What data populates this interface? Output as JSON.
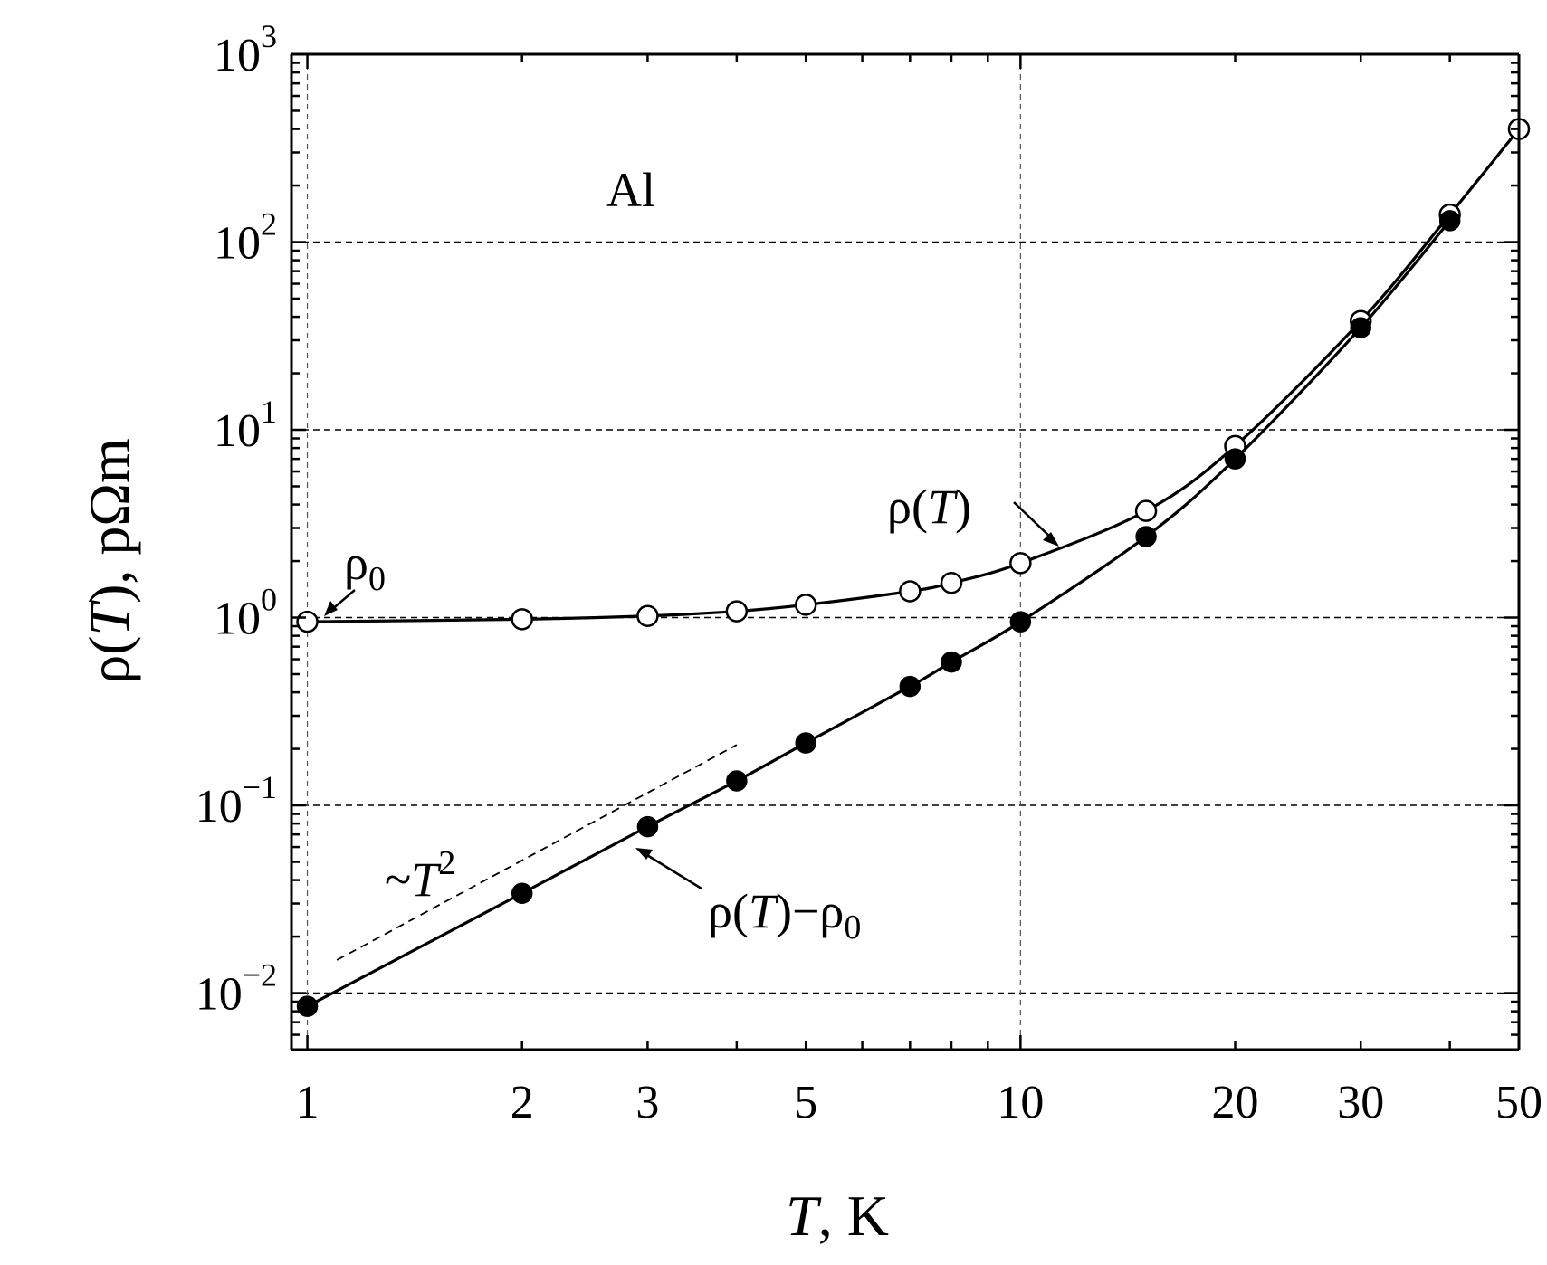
{
  "chart_data": {
    "type": "scatter",
    "material_label": "Al",
    "xlabel": {
      "italic": "T",
      "rest": ", K"
    },
    "ylabel": {
      "pre": "ρ(",
      "italic": "T",
      "post": "), pΩm"
    },
    "x_scale": "log",
    "y_scale": "log",
    "xlim": [
      0.95,
      50
    ],
    "ylim": [
      0.005,
      1000
    ],
    "grid": true,
    "x_tick_labels": [
      {
        "value": 1,
        "label": "1"
      },
      {
        "value": 2,
        "label": "2"
      },
      {
        "value": 3,
        "label": "3"
      },
      {
        "value": 5,
        "label": "5"
      },
      {
        "value": 10,
        "label": "10"
      },
      {
        "value": 20,
        "label": "20"
      },
      {
        "value": 30,
        "label": "30"
      },
      {
        "value": 50,
        "label": "50"
      }
    ],
    "y_tick_labels": [
      {
        "value": 0.01,
        "base": "10",
        "exp": "−2"
      },
      {
        "value": 0.1,
        "base": "10",
        "exp": "−1"
      },
      {
        "value": 1,
        "base": "10",
        "exp": "0"
      },
      {
        "value": 10,
        "base": "10",
        "exp": "1"
      },
      {
        "value": 100,
        "base": "10",
        "exp": "2"
      },
      {
        "value": 1000,
        "base": "10",
        "exp": "3"
      }
    ],
    "series": [
      {
        "key": "rho",
        "marker": "open-circle",
        "x": [
          1,
          2,
          3,
          4,
          5,
          7,
          8,
          10,
          15,
          20,
          30,
          40,
          50
        ],
        "y": [
          0.95,
          0.98,
          1.02,
          1.08,
          1.17,
          1.38,
          1.53,
          1.95,
          3.7,
          8.2,
          38,
          140,
          400
        ]
      },
      {
        "key": "rho_minus_rho0",
        "marker": "filled-circle",
        "x": [
          1,
          2,
          3,
          4,
          5,
          7,
          8,
          10,
          15,
          20,
          30,
          40
        ],
        "y": [
          0.0085,
          0.034,
          0.077,
          0.135,
          0.215,
          0.43,
          0.58,
          0.95,
          2.7,
          7.0,
          35,
          130
        ]
      }
    ],
    "annotations": {
      "rho_label": {
        "pre": "ρ(",
        "italic": "T",
        "post": ")"
      },
      "rho0_label": {
        "main": "ρ",
        "sub": "0"
      },
      "diff_label": {
        "pre": "ρ(",
        "italic": "T",
        "mid": ")−ρ",
        "sub": "0"
      },
      "t2_label": {
        "pre": "~",
        "italic": "T",
        "sup": "2"
      }
    },
    "reference_line_T2": {
      "x": [
        1.1,
        4
      ],
      "y": [
        0.015,
        0.21
      ]
    }
  }
}
